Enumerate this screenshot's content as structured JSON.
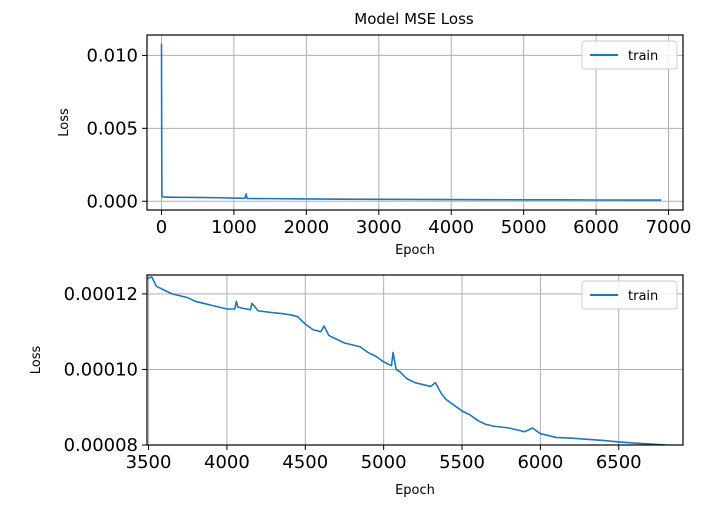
{
  "title": "Model MSE Loss",
  "series_color": "#1f77b4",
  "chart_data": [
    {
      "type": "line",
      "title": "Model MSE Loss",
      "xlabel": "Epoch",
      "ylabel": "Loss",
      "xlim": [
        -200,
        7200
      ],
      "ylim": [
        -0.0006,
        0.0114
      ],
      "xticks": [
        0,
        1000,
        2000,
        3000,
        4000,
        5000,
        6000,
        7000
      ],
      "xtick_labels": [
        "0",
        "1000",
        "2000",
        "3000",
        "4000",
        "5000",
        "6000",
        "7000"
      ],
      "yticks": [
        0.0,
        0.005,
        0.01
      ],
      "ytick_labels": [
        "0.000",
        "0.005",
        "0.010"
      ],
      "grid": true,
      "legend": "top-right",
      "series": [
        {
          "name": "train",
          "x": [
            0,
            5,
            10,
            50,
            200,
            500,
            800,
            1000,
            1150,
            1170,
            1180,
            1200,
            1500,
            2000,
            2500,
            3000,
            3500,
            4000,
            4500,
            5000,
            5500,
            6000,
            6500,
            6900
          ],
          "y": [
            0.0108,
            0.0006,
            0.0003,
            0.00029,
            0.00027,
            0.00026,
            0.00024,
            0.00022,
            0.0002,
            0.0005,
            0.0002,
            0.00019,
            0.00018,
            0.00016,
            0.00014,
            0.00013,
            0.000125,
            0.000115,
            0.000108,
            0.0001,
            9.5e-05,
            8.5e-05,
            8e-05,
            8e-05
          ]
        }
      ]
    },
    {
      "type": "line",
      "title": "",
      "xlabel": "Epoch",
      "ylabel": "Loss",
      "xlim": [
        3490,
        6910
      ],
      "ylim": [
        8e-05,
        0.000125
      ],
      "xticks": [
        3500,
        4000,
        4500,
        5000,
        5500,
        6000,
        6500
      ],
      "xtick_labels": [
        "3500",
        "4000",
        "4500",
        "5000",
        "5500",
        "6000",
        "6500"
      ],
      "yticks": [
        8e-05,
        0.0001,
        0.00012
      ],
      "ytick_labels": [
        "0.00008",
        "0.00010",
        "0.00012"
      ],
      "grid": true,
      "legend": "top-right",
      "series": [
        {
          "name": "train",
          "x": [
            3490,
            3520,
            3550,
            3600,
            3650,
            3700,
            3750,
            3800,
            3850,
            3900,
            4000,
            4050,
            4060,
            4070,
            4100,
            4150,
            4160,
            4200,
            4300,
            4350,
            4400,
            4450,
            4500,
            4550,
            4600,
            4620,
            4650,
            4700,
            4750,
            4800,
            4850,
            4900,
            4950,
            5000,
            5050,
            5060,
            5080,
            5100,
            5150,
            5200,
            5250,
            5300,
            5330,
            5350,
            5370,
            5400,
            5450,
            5500,
            5550,
            5600,
            5650,
            5700,
            5800,
            5900,
            5950,
            6000,
            6050,
            6100,
            6200,
            6300,
            6400,
            6500,
            6600,
            6700,
            6800,
            6850,
            6900
          ],
          "y": [
            0.000124,
            0.0001245,
            0.000122,
            0.000121,
            0.00012,
            0.0001195,
            0.000119,
            0.000118,
            0.0001175,
            0.000117,
            0.000116,
            0.000116,
            0.000118,
            0.0001165,
            0.0001162,
            0.0001158,
            0.0001175,
            0.0001155,
            0.000115,
            0.0001148,
            0.0001145,
            0.000114,
            0.000112,
            0.0001105,
            0.00011,
            0.0001115,
            0.000109,
            0.000108,
            0.000107,
            0.0001065,
            0.000106,
            0.0001045,
            0.0001035,
            0.000102,
            0.000101,
            0.0001045,
            0.0001,
            9.95e-05,
            9.75e-05,
            9.65e-05,
            9.6e-05,
            9.55e-05,
            9.65e-05,
            9.5e-05,
            9.35e-05,
            9.2e-05,
            9.05e-05,
            8.9e-05,
            8.8e-05,
            8.65e-05,
            8.55e-05,
            8.5e-05,
            8.45e-05,
            8.35e-05,
            8.45e-05,
            8.3e-05,
            8.25e-05,
            8.2e-05,
            8.18e-05,
            8.15e-05,
            8.12e-05,
            8.08e-05,
            8.05e-05,
            8.03e-05,
            8e-05,
            7.99e-05,
            7.98e-05
          ]
        }
      ]
    }
  ]
}
